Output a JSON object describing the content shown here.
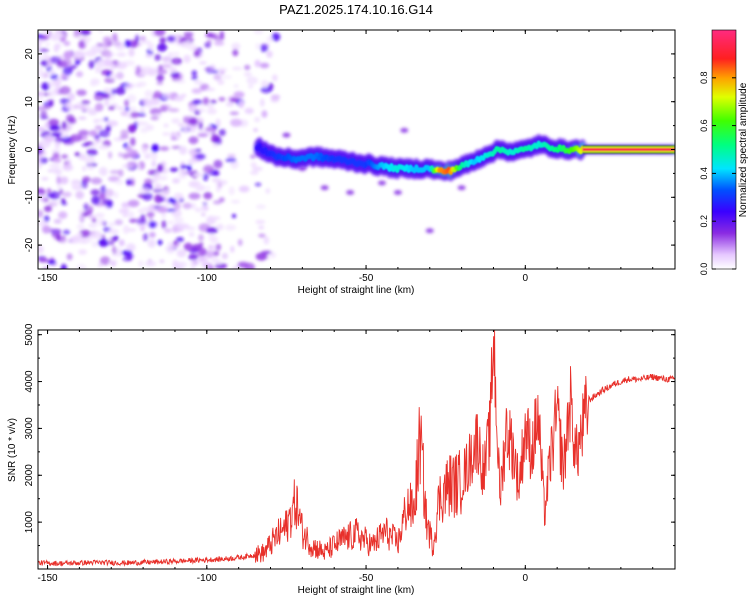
{
  "title": "PAZ1.2025.174.10.16.G14",
  "chart_data": [
    {
      "type": "heatmap",
      "xlabel": "Height of straight line (km)",
      "ylabel": "Frequency (Hz)",
      "xlim": [
        -153,
        47
      ],
      "ylim": [
        -25,
        25
      ],
      "xticks": [
        -150,
        -100,
        -50,
        0
      ],
      "yticks": [
        -20,
        -10,
        0,
        10,
        20
      ],
      "colorbar": {
        "label": "Normalized spectral amplitude",
        "range": [
          0,
          1
        ],
        "ticks": [
          "0.0",
          "0.2",
          "0.4",
          "0.6",
          "0.8"
        ]
      },
      "ridge": {
        "x": [
          -84,
          -78,
          -72,
          -66,
          -60,
          -55,
          -50,
          -45,
          -40,
          -35,
          -30,
          -27,
          -24,
          -20,
          -16,
          -12,
          -8,
          -4,
          0,
          4,
          8,
          12,
          16,
          20,
          24,
          30,
          36,
          42,
          47
        ],
        "frequency": [
          0.5,
          -1.5,
          -2,
          -1.5,
          -2,
          -2.5,
          -3,
          -3.5,
          -4,
          -4,
          -4,
          -4.5,
          -4.5,
          -3.5,
          -2.5,
          -1,
          0,
          -0.5,
          0,
          1,
          0.5,
          0,
          0,
          0,
          0,
          0,
          0,
          0,
          0
        ],
        "amplitude": [
          0.25,
          0.3,
          0.35,
          0.35,
          0.3,
          0.3,
          0.3,
          0.4,
          0.45,
          0.4,
          0.4,
          0.8,
          0.85,
          0.5,
          0.4,
          0.45,
          0.5,
          0.45,
          0.5,
          0.45,
          0.5,
          0.55,
          0.65,
          0.85,
          0.95,
          0.95,
          0.95,
          0.95,
          0.95
        ]
      }
    },
    {
      "type": "line",
      "xlabel": "Height of straight line (km)",
      "ylabel": "SNR (10 * v/v)",
      "xlim": [
        -153,
        47
      ],
      "ylim": [
        0,
        5100
      ],
      "xticks": [
        -150,
        -100,
        -50,
        0
      ],
      "yticks": [
        1000,
        2000,
        3000,
        4000,
        5000
      ],
      "series_color": "#e8302a",
      "series": [
        {
          "x": [
            -153,
            -145,
            -135,
            -125,
            -115,
            -105,
            -95,
            -88,
            -82,
            -78,
            -75,
            -72,
            -70,
            -67,
            -63,
            -58,
            -53,
            -48,
            -44,
            -40,
            -37,
            -35,
            -33,
            -31,
            -29,
            -27,
            -24,
            -21,
            -18,
            -15,
            -13,
            -11,
            -10,
            -8,
            -6,
            -4,
            -2,
            0,
            2,
            4,
            6,
            8,
            10,
            12,
            14,
            16,
            18,
            20,
            24,
            28,
            32,
            36,
            40,
            44,
            47
          ],
          "values": [
            130,
            120,
            140,
            130,
            150,
            180,
            210,
            260,
            350,
            700,
            900,
            1450,
            800,
            500,
            350,
            600,
            750,
            500,
            800,
            550,
            1400,
            1200,
            2800,
            1000,
            500,
            1500,
            1800,
            1800,
            2200,
            2800,
            2000,
            3000,
            5100,
            1500,
            3000,
            2600,
            1800,
            3000,
            2500,
            3300,
            1200,
            2400,
            3300,
            2100,
            3600,
            2400,
            3000,
            3600,
            3800,
            3950,
            4050,
            4050,
            4100,
            4050,
            4050
          ]
        }
      ]
    }
  ]
}
